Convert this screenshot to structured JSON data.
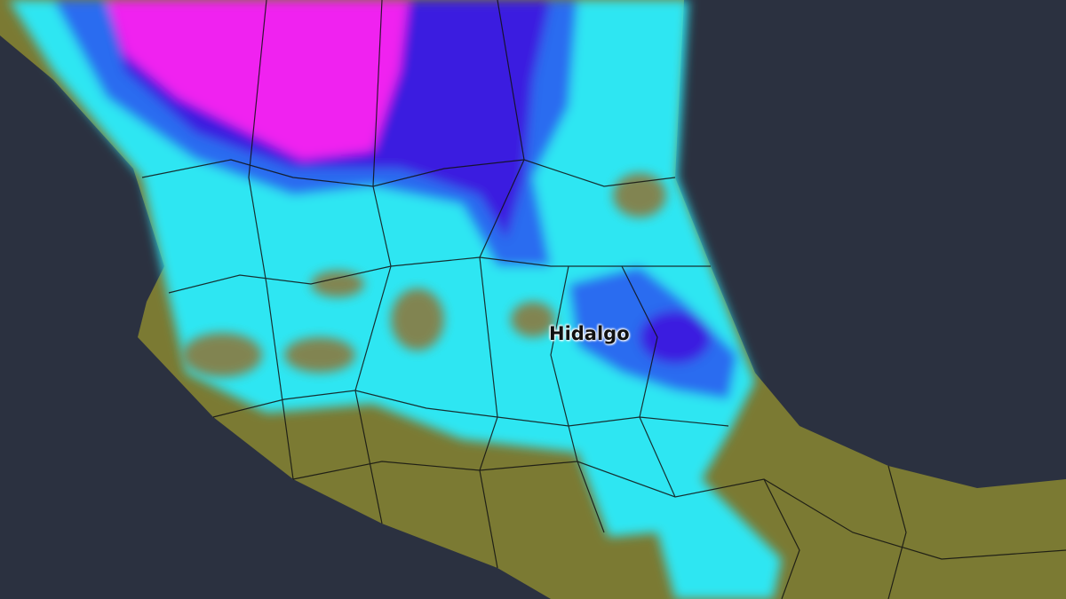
{
  "map": {
    "label": "Hidalgo",
    "colors": {
      "ocean": "#2b3140",
      "land": "#7b7a33",
      "rain_light": "#2ee6f2",
      "rain_medium": "#2a6cf0",
      "rain_heavy": "#3a1ee0",
      "rain_extreme": "#f020f0"
    }
  }
}
